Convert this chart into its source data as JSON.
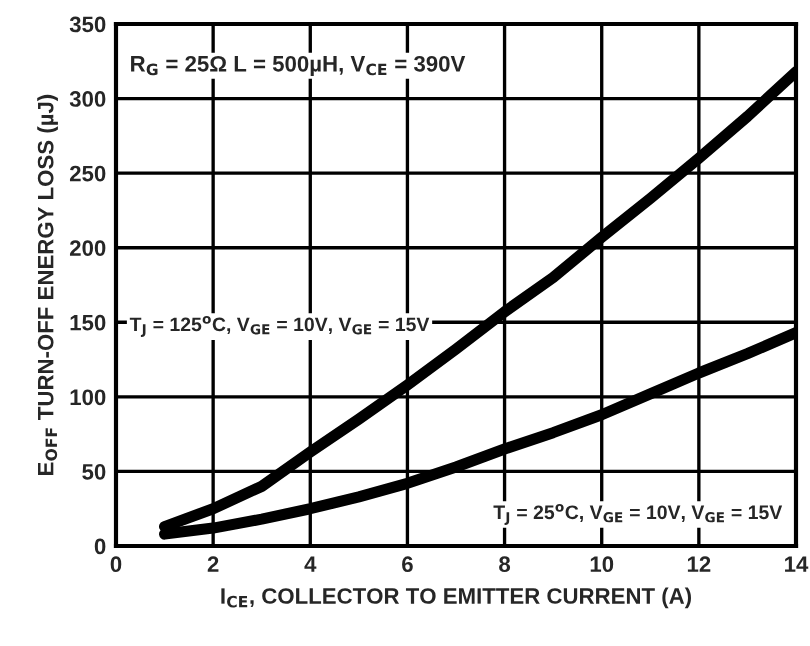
{
  "chart_data": {
    "type": "line",
    "xlabel": "I$_{CE}$, COLLECTOR TO EMITTER CURRENT (A)",
    "ylabel": "E$_{OFF}$ TURN-OFF ENERGY LOSS (µJ)",
    "annotations": [
      "R$_{G}$ = 25Ω L = 500µH, V$_{CE}$ = 390V"
    ],
    "x": [
      1,
      2,
      3,
      4,
      5,
      6,
      7,
      8,
      9,
      10,
      11,
      12,
      13,
      14
    ],
    "series": [
      {
        "name": "T$_{J}$ = 125$^{o}$C, V$_{GE}$ = 10V, V$_{GE}$ = 15V",
        "color": "#000000",
        "values": [
          13,
          25,
          40,
          63,
          85,
          108,
          132,
          157,
          180,
          207,
          233,
          260,
          288,
          318
        ]
      },
      {
        "name": "T$_{J}$ = 25$^{o}$C, V$_{GE}$ = 10V, V$_{GE}$ = 15V",
        "color": "#000000",
        "values": [
          8,
          12,
          18,
          25,
          33,
          42,
          53,
          65,
          76,
          88,
          102,
          116,
          129,
          143
        ]
      }
    ],
    "xlim": [
      0,
      14
    ],
    "xticks": [
      0,
      2,
      4,
      6,
      8,
      10,
      12,
      14
    ],
    "ylim": [
      0,
      350
    ],
    "yticks": [
      0,
      50,
      100,
      150,
      200,
      250,
      300,
      350
    ],
    "grid": true,
    "legend": false,
    "marker": "none",
    "line_style": "solid"
  }
}
